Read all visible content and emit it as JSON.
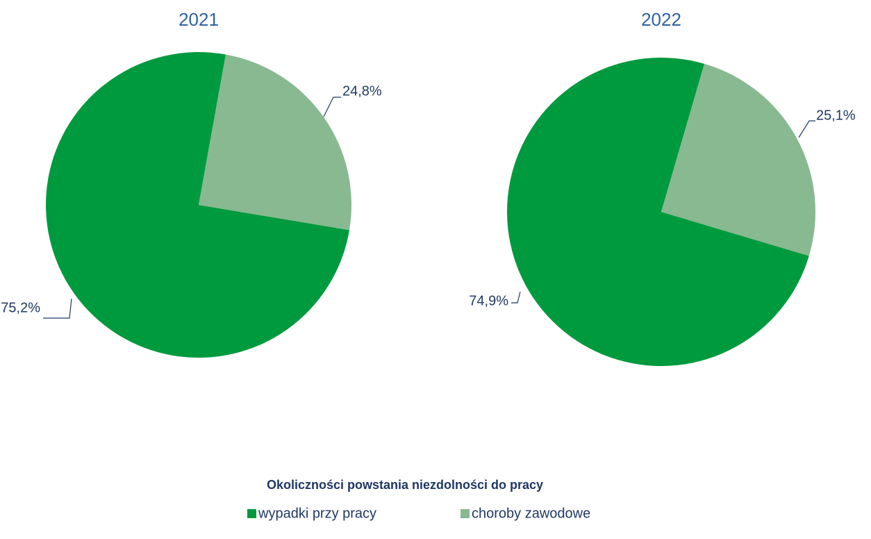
{
  "chart_data": [
    {
      "type": "pie",
      "title": "2021",
      "values": [
        75.2,
        24.8
      ],
      "value_labels": [
        "75,2%",
        "24,8%"
      ]
    },
    {
      "type": "pie",
      "title": "2022",
      "values": [
        74.9,
        25.1
      ],
      "value_labels": [
        "74,9%",
        "25,1%"
      ]
    }
  ],
  "legend": {
    "title": "Okoliczności powstania niezdolności do pracy",
    "categories": [
      "wypadki przy pracy",
      "choroby zawodowe"
    ],
    "colors": [
      "#009a3e",
      "#88b990"
    ]
  }
}
